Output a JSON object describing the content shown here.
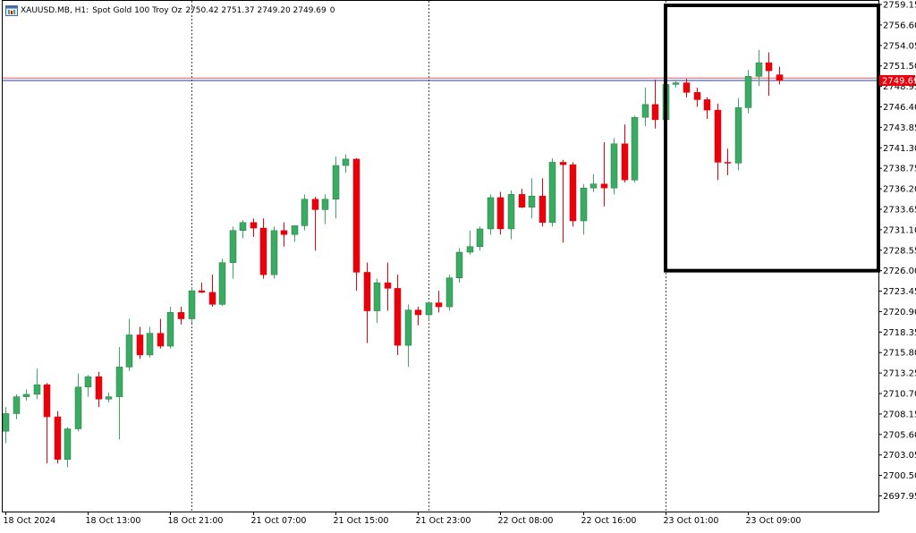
{
  "header": {
    "symbol": "XAUUSD.MB, H1:",
    "description": "Spot Gold 100 Troy Oz",
    "ohlc": "2750.42 2751.37 2749.20 2749.69",
    "extra": "0"
  },
  "colors": {
    "bull": "#3bab63",
    "bear": "#e8000b",
    "bid_line": "#3030c0",
    "ask_line": "#d06060",
    "price_tag": "#e8000b",
    "frame": "#000000",
    "highlight_box": "#000000"
  },
  "current_price_label": "2749.69",
  "chart_data": {
    "type": "candlestick",
    "ylim": [
      2696.0,
      2759.6
    ],
    "y_ticks": [
      "2759.15",
      "2756.60",
      "2754.05",
      "2751.50",
      "2748.95",
      "2746.40",
      "2743.85",
      "2741.30",
      "2738.75",
      "2736.20",
      "2733.65",
      "2731.10",
      "2728.55",
      "2726.00",
      "2723.45",
      "2720.90",
      "2718.35",
      "2715.80",
      "2713.25",
      "2710.70",
      "2708.15",
      "2705.60",
      "2703.05",
      "2700.50",
      "2697.95"
    ],
    "x_labels": [
      {
        "text": "18 Oct 2024",
        "index": 0
      },
      {
        "text": "18 Oct 13:00",
        "index": 8
      },
      {
        "text": "18 Oct 21:00",
        "index": 16
      },
      {
        "text": "21 Oct 07:00",
        "index": 24
      },
      {
        "text": "21 Oct 15:00",
        "index": 32
      },
      {
        "text": "21 Oct 23:00",
        "index": 40
      },
      {
        "text": "22 Oct 08:00",
        "index": 48
      },
      {
        "text": "22 Oct 16:00",
        "index": 56
      },
      {
        "text": "23 Oct 01:00",
        "index": 64
      },
      {
        "text": "23 Oct 09:00",
        "index": 72
      }
    ],
    "separators": [
      18,
      41,
      64
    ],
    "bid": 2749.69,
    "ask": 2750.0,
    "highlight": {
      "from_index": 64,
      "to_index": 87,
      "y_top": 2759.6,
      "y_bottom": 2726.0
    },
    "candles": [
      [
        2706.0,
        2709.0,
        2704.5,
        2708.2
      ],
      [
        2708.2,
        2710.6,
        2707.5,
        2710.3
      ],
      [
        2710.3,
        2711.2,
        2709.8,
        2710.6
      ],
      [
        2710.6,
        2713.8,
        2710.0,
        2711.8
      ],
      [
        2711.8,
        2712.0,
        2702.0,
        2707.8
      ],
      [
        2707.8,
        2708.5,
        2702.0,
        2702.5
      ],
      [
        2702.5,
        2706.5,
        2701.5,
        2706.3
      ],
      [
        2706.3,
        2713.2,
        2706.0,
        2711.5
      ],
      [
        2711.5,
        2713.0,
        2710.3,
        2712.8
      ],
      [
        2712.8,
        2713.4,
        2709.0,
        2710.0
      ],
      [
        2710.0,
        2710.8,
        2709.6,
        2710.3
      ],
      [
        2710.3,
        2716.5,
        2705.0,
        2714.0
      ],
      [
        2714.0,
        2720.0,
        2713.5,
        2718.0
      ],
      [
        2718.0,
        2719.0,
        2715.0,
        2715.5
      ],
      [
        2715.5,
        2719.0,
        2715.2,
        2718.2
      ],
      [
        2718.2,
        2720.0,
        2716.3,
        2716.6
      ],
      [
        2716.6,
        2721.5,
        2716.3,
        2720.8
      ],
      [
        2720.8,
        2721.5,
        2719.3,
        2720.0
      ],
      [
        2720.0,
        2724.0,
        2719.5,
        2723.5
      ],
      [
        2723.5,
        2724.5,
        2723.2,
        2723.3
      ],
      [
        2723.3,
        2725.5,
        2721.5,
        2721.8
      ],
      [
        2721.8,
        2727.5,
        2721.6,
        2727.0
      ],
      [
        2727.0,
        2731.5,
        2725.0,
        2731.0
      ],
      [
        2731.0,
        2732.3,
        2730.0,
        2732.0
      ],
      [
        2732.0,
        2732.5,
        2730.2,
        2731.3
      ],
      [
        2731.3,
        2732.5,
        2725.0,
        2725.5
      ],
      [
        2725.5,
        2731.5,
        2725.0,
        2731.0
      ],
      [
        2731.0,
        2732.0,
        2729.0,
        2730.5
      ],
      [
        2730.5,
        2731.5,
        2729.6,
        2731.6
      ],
      [
        2731.6,
        2735.5,
        2731.0,
        2734.9
      ],
      [
        2734.9,
        2735.2,
        2728.5,
        2733.6
      ],
      [
        2733.6,
        2735.5,
        2731.8,
        2734.9
      ],
      [
        2734.9,
        2740.2,
        2732.5,
        2739.1
      ],
      [
        2739.1,
        2740.5,
        2738.2,
        2739.9
      ],
      [
        2739.9,
        2740.0,
        2723.5,
        2725.8
      ],
      [
        2725.8,
        2727.0,
        2717.0,
        2721.0
      ],
      [
        2721.0,
        2725.0,
        2719.5,
        2724.5
      ],
      [
        2724.5,
        2727.0,
        2721.0,
        2723.8
      ],
      [
        2723.8,
        2725.5,
        2715.5,
        2716.7
      ],
      [
        2716.7,
        2721.8,
        2714.0,
        2721.1
      ],
      [
        2721.1,
        2721.5,
        2719.2,
        2720.5
      ],
      [
        2720.5,
        2722.2,
        2719.8,
        2722.0
      ],
      [
        2722.0,
        2723.5,
        2720.8,
        2721.5
      ],
      [
        2721.5,
        2725.5,
        2721.0,
        2725.1
      ],
      [
        2725.1,
        2728.8,
        2724.5,
        2728.3
      ],
      [
        2728.3,
        2731.0,
        2728.0,
        2729.0
      ],
      [
        2729.0,
        2731.5,
        2728.5,
        2731.2
      ],
      [
        2731.2,
        2735.5,
        2730.5,
        2735.1
      ],
      [
        2735.1,
        2735.8,
        2730.5,
        2731.2
      ],
      [
        2731.2,
        2736.0,
        2729.9,
        2735.5
      ],
      [
        2735.5,
        2736.2,
        2733.8,
        2733.9
      ],
      [
        2733.9,
        2737.5,
        2732.5,
        2735.3
      ],
      [
        2735.3,
        2737.5,
        2731.5,
        2732.0
      ],
      [
        2732.0,
        2740.0,
        2731.5,
        2739.5
      ],
      [
        2739.5,
        2739.8,
        2729.5,
        2739.2
      ],
      [
        2739.2,
        2739.5,
        2731.5,
        2732.2
      ],
      [
        2732.2,
        2736.8,
        2730.5,
        2736.3
      ],
      [
        2736.3,
        2738.0,
        2735.8,
        2736.8
      ],
      [
        2736.8,
        2742.0,
        2734.0,
        2736.3
      ],
      [
        2736.3,
        2742.5,
        2735.5,
        2741.8
      ],
      [
        2741.8,
        2744.2,
        2737.0,
        2737.3
      ],
      [
        2737.3,
        2745.3,
        2737.0,
        2745.1
      ],
      [
        2745.1,
        2748.8,
        2744.0,
        2746.7
      ],
      [
        2746.7,
        2749.8,
        2743.7,
        2744.8
      ],
      [
        2744.8,
        2749.5,
        2744.4,
        2749.2
      ],
      [
        2749.2,
        2749.6,
        2748.8,
        2749.4
      ],
      [
        2749.4,
        2749.9,
        2747.6,
        2748.2
      ],
      [
        2748.2,
        2748.8,
        2746.4,
        2747.3
      ],
      [
        2747.3,
        2747.6,
        2744.9,
        2746.0
      ],
      [
        2746.0,
        2746.8,
        2737.3,
        2739.5
      ],
      [
        2739.5,
        2741.2,
        2737.9,
        2739.4
      ],
      [
        2739.4,
        2747.5,
        2738.5,
        2746.3
      ],
      [
        2746.3,
        2751.0,
        2745.6,
        2750.2
      ],
      [
        2750.2,
        2753.5,
        2749.0,
        2751.9
      ],
      [
        2751.9,
        2753.2,
        2747.8,
        2750.9
      ],
      [
        2750.4,
        2751.4,
        2749.2,
        2749.69
      ]
    ]
  }
}
